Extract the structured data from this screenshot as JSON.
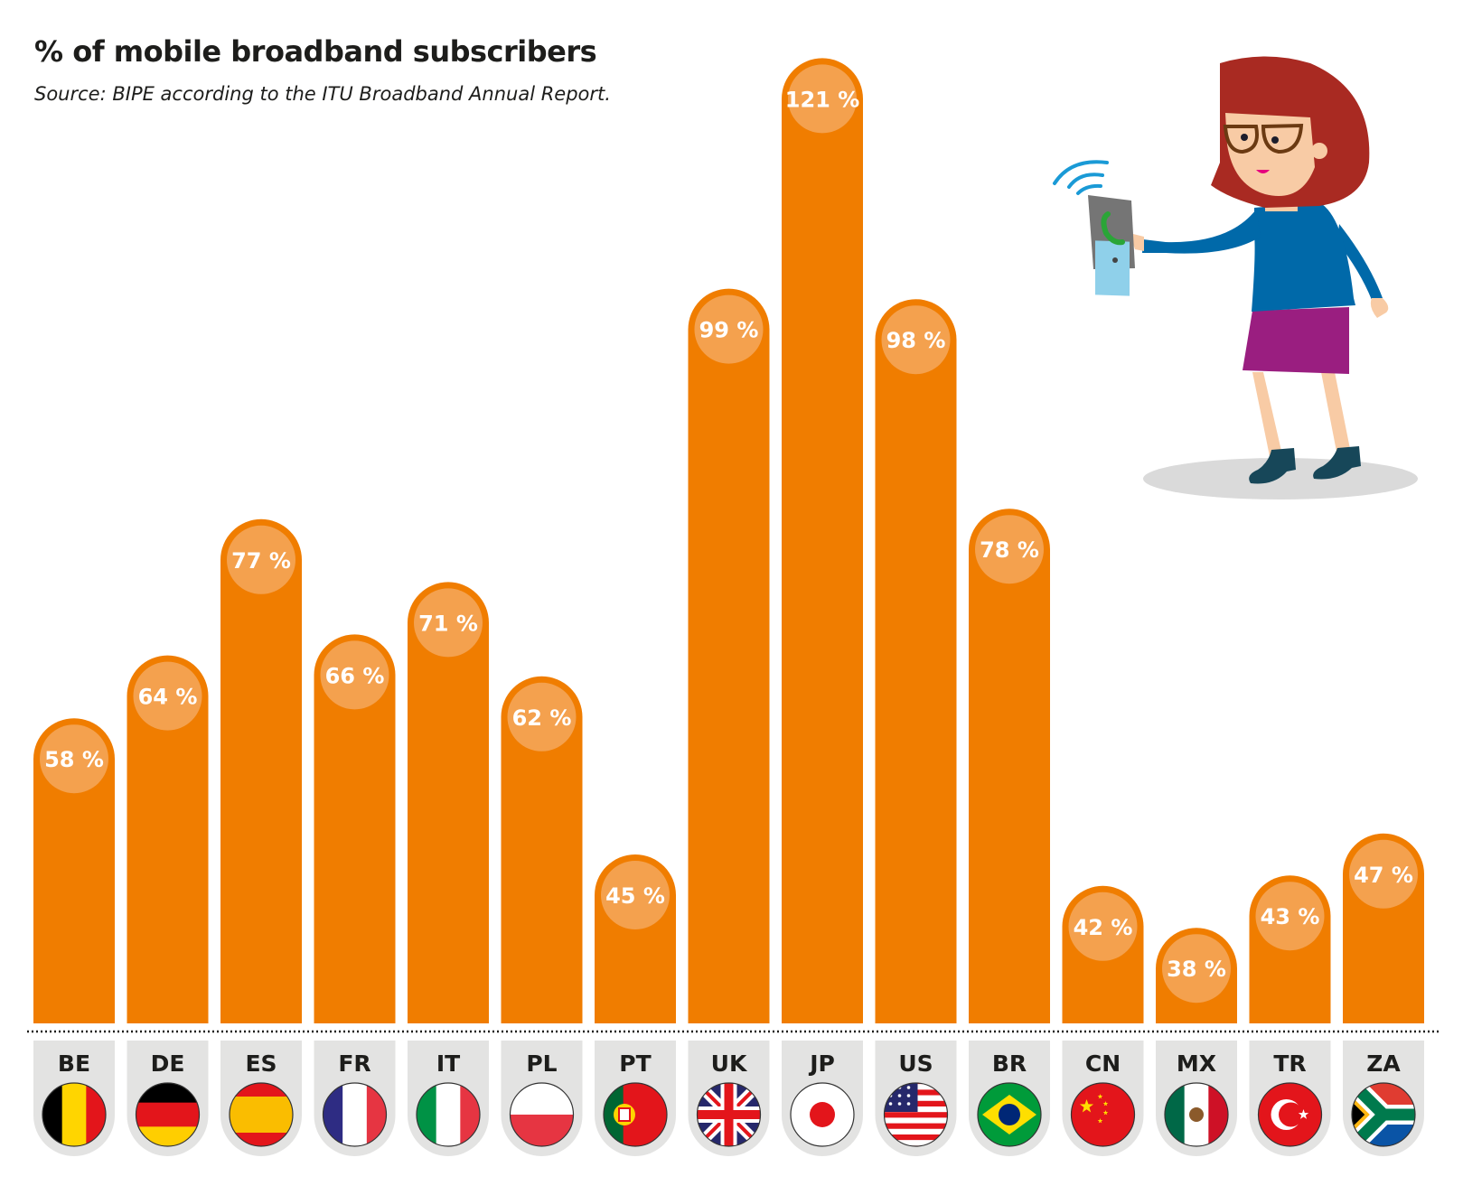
{
  "chart_data": {
    "type": "bar",
    "title": "% of mobile broadband subscribers",
    "subtitle": "Source: BIPE according to the ITU Broadband Annual Report.",
    "categories": [
      "BE",
      "DE",
      "ES",
      "FR",
      "IT",
      "PL",
      "PT",
      "UK",
      "JP",
      "US",
      "BR",
      "CN",
      "MX",
      "TR",
      "ZA"
    ],
    "values": [
      58,
      64,
      77,
      66,
      71,
      62,
      45,
      99,
      121,
      98,
      78,
      42,
      38,
      43,
      47
    ],
    "value_labels": [
      "58 %",
      "64 %",
      "77 %",
      "66 %",
      "71 %",
      "62 %",
      "45 %",
      "99 %",
      "121 %",
      "98 %",
      "78 %",
      "42 %",
      "38 %",
      "43 %",
      "47 %"
    ],
    "flags": [
      "belgium-flag",
      "germany-flag",
      "spain-flag",
      "france-flag",
      "italy-flag",
      "poland-flag",
      "portugal-flag",
      "uk-flag",
      "japan-flag",
      "usa-flag",
      "brazil-flag",
      "china-flag",
      "mexico-flag",
      "turkey-flag",
      "south-africa-flag"
    ],
    "xlabel": "",
    "ylabel": "",
    "grid": false,
    "colors": {
      "bar": "#F07D00",
      "value_circle": "#F4A14E",
      "tag": "#E3E3E2",
      "text": "#1D1D1B"
    }
  }
}
